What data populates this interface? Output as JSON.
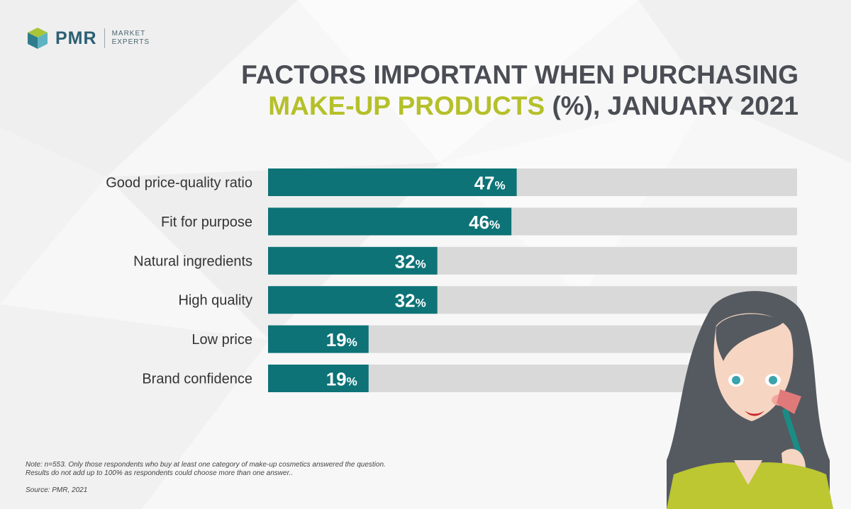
{
  "brand": {
    "name": "PMR",
    "tagline_line1": "MARKET",
    "tagline_line2": "EXPERTS"
  },
  "title": {
    "line1": "FACTORS IMPORTANT WHEN PURCHASING",
    "line2_highlight": "MAKE-UP PRODUCTS",
    "line2_rest": " (%), JANUARY 2021"
  },
  "colors": {
    "bar": "#0d7377",
    "track": "#d9d9d9",
    "highlight": "#b5c02a",
    "title": "#4a4d54"
  },
  "chart_data": {
    "type": "bar",
    "orientation": "horizontal",
    "categories": [
      "Good price-quality ratio",
      "Fit for purpose",
      "Natural ingredients",
      "High quality",
      "Low price",
      "Brand confidence"
    ],
    "values": [
      47,
      46,
      32,
      32,
      19,
      19
    ],
    "value_suffix": "%",
    "xlim": [
      0,
      100
    ]
  },
  "note": {
    "line1": "Note: n=553. Only those respondents who buy at least one category of make-up cosmetics answered the question.",
    "line2": "Results do not add up to 100% as respondents could choose more than one answer.."
  },
  "source": "Source: PMR, 2021"
}
